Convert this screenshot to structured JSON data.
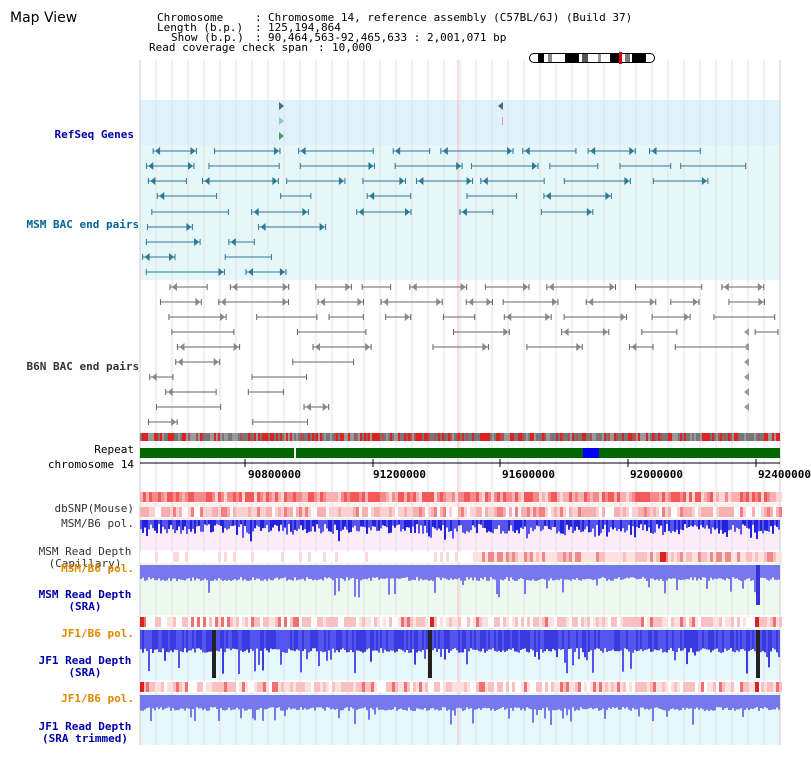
{
  "title": "Map View",
  "header": {
    "chromosome_key": "Chromosome",
    "chromosome_val": "Chromosome 14, reference assembly (C57BL/6J) (Build 37)",
    "length_key": "Length (b.p.)",
    "length_val": "125,194,864",
    "show_key": "Show (b.p.)",
    "show_val": "90,464,563-92,465,633 : 2,001,071 bp",
    "coverage_key": "Read coverage check span",
    "coverage_val": "10,000"
  },
  "tracks": {
    "refseq": {
      "label": "RefSeq Genes",
      "color": "#0000aa"
    },
    "msm_bac": {
      "label": "MSM BAC end pairs",
      "color": "#006699"
    },
    "b6n_bac": {
      "label": "B6N BAC end pairs",
      "color": "#333333"
    },
    "repeat": {
      "label": "Repeat"
    },
    "chromosome": {
      "label": "chromosome 14"
    },
    "dbsnp": {
      "label": "dbSNP(Mouse)"
    },
    "msm_b6_pol_1": {
      "label": "MSM/B6 pol."
    },
    "msm_depth_cap": {
      "label1": "MSM Read Depth",
      "label2": "(Capillary)"
    },
    "msm_b6_pol_2": {
      "label": "MSM/B6 pol.",
      "color": "#e08800"
    },
    "msm_depth_sra": {
      "label1": "MSM Read Depth",
      "label2": "(SRA)",
      "color": "#0000aa"
    },
    "jf1_b6_pol_1": {
      "label": "JF1/B6 pol.",
      "color": "#e08800"
    },
    "jf1_depth_sra": {
      "label1": "JF1 Read Depth",
      "label2": "(SRA)",
      "color": "#0000aa"
    },
    "jf1_b6_pol_2": {
      "label": "JF1/B6 pol.",
      "color": "#e08800"
    },
    "jf1_depth_trim": {
      "label1": "JF1 Read Depth",
      "label2": "(SRA trimmed)",
      "color": "#0000aa"
    }
  },
  "axis": {
    "ticks": [
      "90800000",
      "91200000",
      "91600000",
      "92000000",
      "92400000"
    ]
  },
  "colors": {
    "accent_dark_blue": "#0000aa",
    "orange": "#e08800",
    "teal": "#006699",
    "chromosome_green": "#006600",
    "highlight_blue": "#0000ff"
  }
}
